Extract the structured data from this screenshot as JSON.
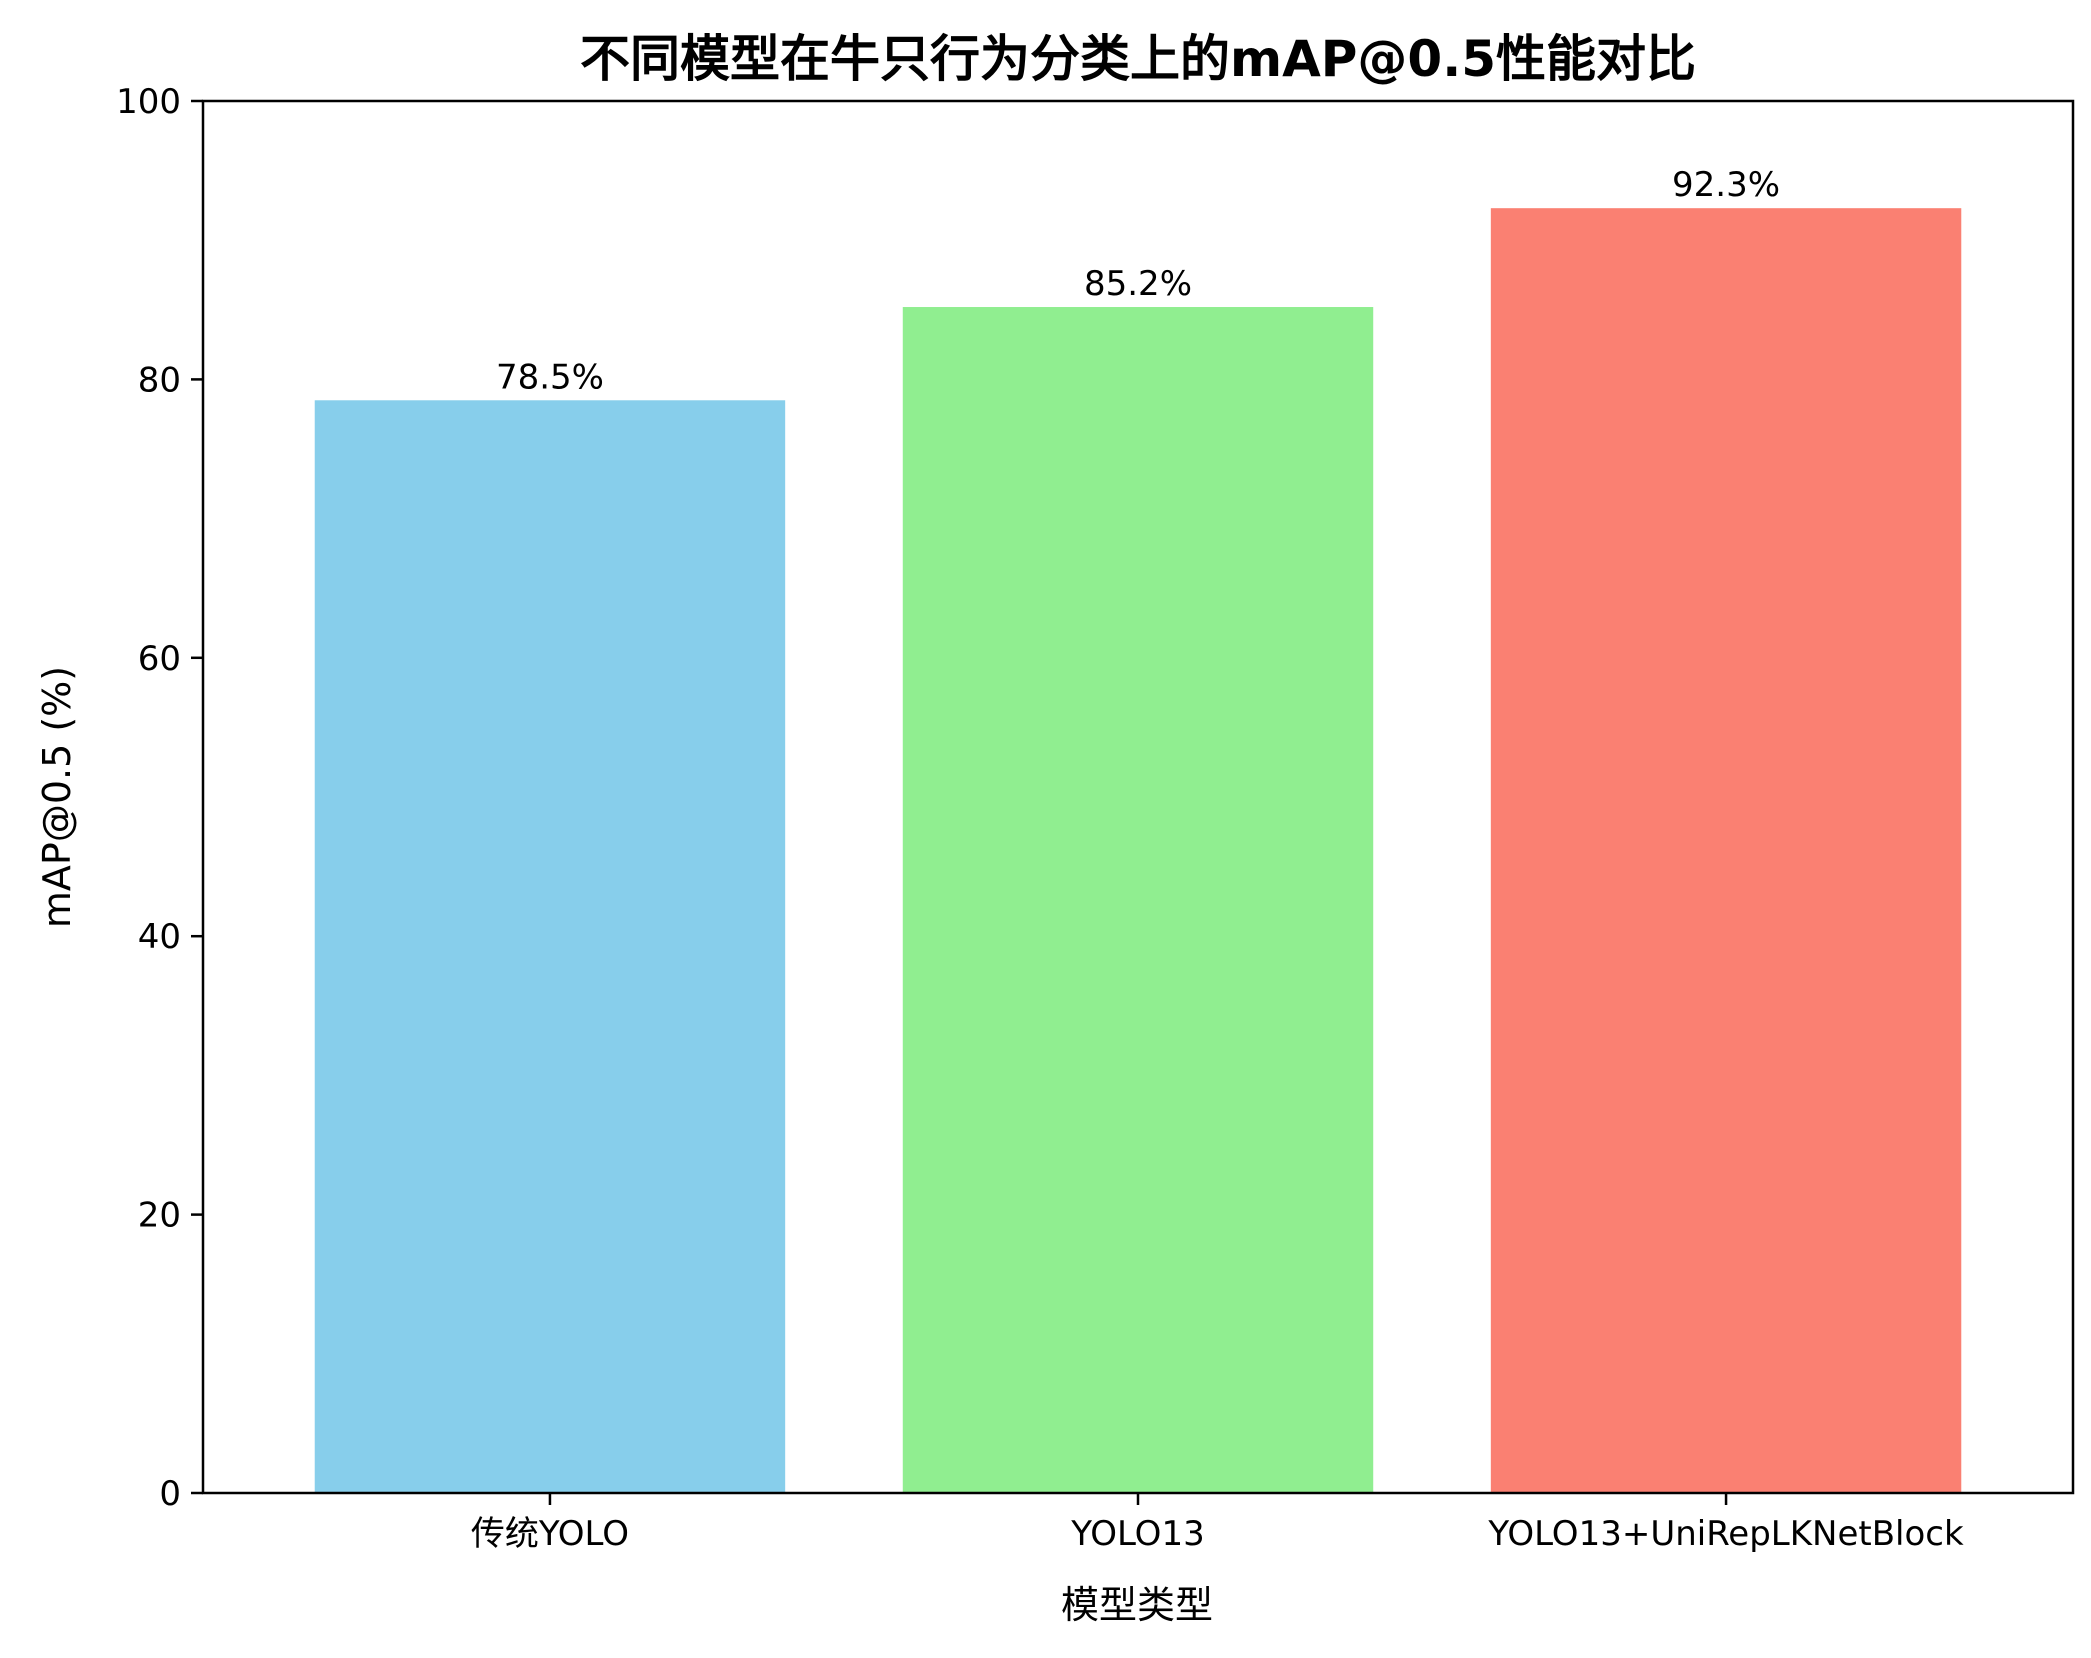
{
  "chart_data": {
    "type": "bar",
    "title": "不同模型在牛只行为分类上的mAP@0.5性能对比",
    "xlabel": "模型类型",
    "ylabel": "mAP@0.5 (%)",
    "categories": [
      "传统YOLO",
      "YOLO13",
      "YOLO13+UniRepLKNetBlock"
    ],
    "values": [
      78.5,
      85.2,
      92.3
    ],
    "data_labels": [
      "78.5%",
      "85.2%",
      "92.3%"
    ],
    "colors": [
      "#87ceeb",
      "#90ee90",
      "#fa8072"
    ],
    "ylim": [
      0,
      100
    ],
    "yticks": [
      0,
      20,
      40,
      60,
      80,
      100
    ],
    "ytick_labels": [
      "0",
      "20",
      "40",
      "60",
      "80",
      "100"
    ],
    "grid": false,
    "legend": "none"
  }
}
